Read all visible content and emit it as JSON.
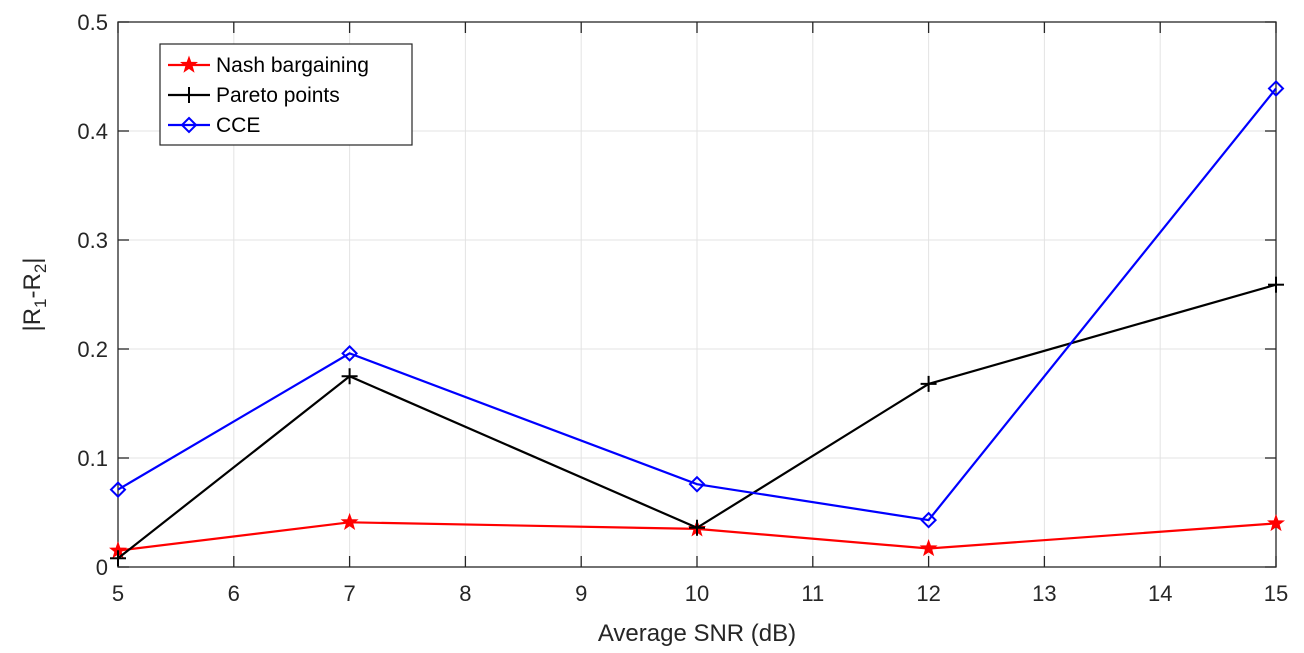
{
  "chart_data": {
    "type": "line",
    "title": "",
    "xlabel": "Average SNR (dB)",
    "ylabel": {
      "base": "|R",
      "sub1": "1",
      "mid": "-R",
      "sub2": "2",
      "end": "|"
    },
    "xlim": [
      5,
      15
    ],
    "ylim": [
      0,
      0.5
    ],
    "xticks": [
      5,
      6,
      7,
      8,
      9,
      10,
      11,
      12,
      13,
      14,
      15
    ],
    "yticks": [
      0,
      0.1,
      0.2,
      0.3,
      0.4,
      0.5
    ],
    "ytick_labels": [
      "0",
      "0.1",
      "0.2",
      "0.3",
      "0.4",
      "0.5"
    ],
    "grid": true,
    "legend_position": "top-left",
    "x": [
      5,
      7,
      10,
      12,
      15
    ],
    "series": [
      {
        "name": "Nash bargaining",
        "color": "#ff0000",
        "marker": "star",
        "values": [
          0.015,
          0.041,
          0.035,
          0.017,
          0.04
        ]
      },
      {
        "name": "Pareto points",
        "color": "#000000",
        "marker": "plus",
        "values": [
          0.008,
          0.175,
          0.036,
          0.168,
          0.259
        ]
      },
      {
        "name": "CCE",
        "color": "#0000ff",
        "marker": "diamond",
        "values": [
          0.071,
          0.196,
          0.076,
          0.043,
          0.439
        ]
      }
    ]
  }
}
